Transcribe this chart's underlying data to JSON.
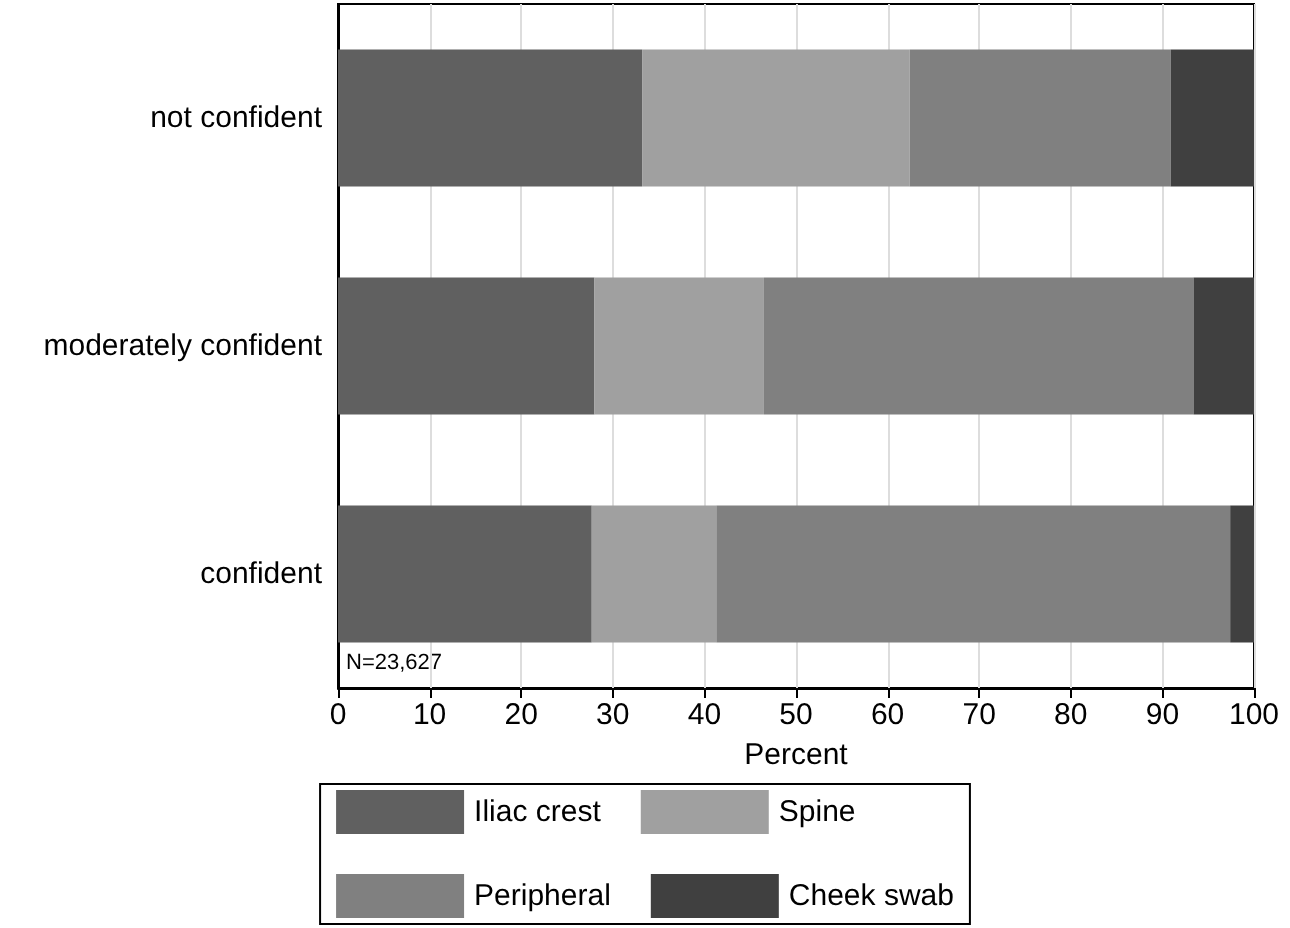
{
  "chart_data": {
    "type": "bar",
    "orientation": "horizontal",
    "stacked": true,
    "xlabel": "Percent",
    "categories": [
      "not confident",
      "moderately confident",
      "confident"
    ],
    "series": [
      {
        "name": "Iliac crest",
        "color": "#606060",
        "values": [
          33.2,
          28.0,
          27.7
        ]
      },
      {
        "name": "Spine",
        "color": "#a0a0a0",
        "values": [
          29.2,
          18.5,
          13.6
        ]
      },
      {
        "name": "Peripheral",
        "color": "#808080",
        "values": [
          28.5,
          46.9,
          56.1
        ]
      },
      {
        "name": "Cheek swab",
        "color": "#404040",
        "values": [
          9.1,
          6.6,
          2.6
        ]
      }
    ],
    "xlim": [
      0,
      100
    ],
    "xticks": [
      0,
      10,
      20,
      30,
      40,
      50,
      60,
      70,
      80,
      90,
      100
    ],
    "grid": "x",
    "legend": "bottom",
    "annotations": [
      "N=23,627"
    ]
  }
}
